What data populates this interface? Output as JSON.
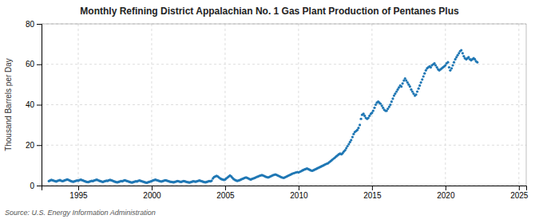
{
  "chart_data": {
    "type": "scatter",
    "title": "Monthly Refining District Appalachian No. 1 Gas Plant Production of Pentanes Plus",
    "y_label": "Thousand Barrels per Day",
    "source": "Source: U.S. Energy Information Administration",
    "xlim": [
      1992.5,
      2025.5
    ],
    "xticks": [
      1995,
      2000,
      2005,
      2010,
      2015,
      2020,
      2025
    ],
    "ylim": [
      0,
      80
    ],
    "yticks": [
      0,
      20,
      40,
      60,
      80
    ],
    "grid": true,
    "x": [
      1993.0,
      1993.08,
      1993.17,
      1993.25,
      1993.33,
      1993.42,
      1993.5,
      1993.58,
      1993.67,
      1993.75,
      1993.83,
      1993.92,
      1994.0,
      1994.08,
      1994.17,
      1994.25,
      1994.33,
      1994.42,
      1994.5,
      1994.58,
      1994.67,
      1994.75,
      1994.83,
      1994.92,
      1995.0,
      1995.08,
      1995.17,
      1995.25,
      1995.33,
      1995.42,
      1995.5,
      1995.58,
      1995.67,
      1995.75,
      1995.83,
      1995.92,
      1996.0,
      1996.08,
      1996.17,
      1996.25,
      1996.33,
      1996.42,
      1996.5,
      1996.58,
      1996.67,
      1996.75,
      1996.83,
      1996.92,
      1997.0,
      1997.08,
      1997.17,
      1997.25,
      1997.33,
      1997.42,
      1997.5,
      1997.58,
      1997.67,
      1997.75,
      1997.83,
      1997.92,
      1998.0,
      1998.08,
      1998.17,
      1998.25,
      1998.33,
      1998.42,
      1998.5,
      1998.58,
      1998.67,
      1998.75,
      1998.83,
      1998.92,
      1999.0,
      1999.08,
      1999.17,
      1999.25,
      1999.33,
      1999.42,
      1999.5,
      1999.58,
      1999.67,
      1999.75,
      1999.83,
      1999.92,
      2000.0,
      2000.08,
      2000.17,
      2000.25,
      2000.33,
      2000.42,
      2000.5,
      2000.58,
      2000.67,
      2000.75,
      2000.83,
      2000.92,
      2001.0,
      2001.08,
      2001.17,
      2001.25,
      2001.33,
      2001.42,
      2001.5,
      2001.58,
      2001.67,
      2001.75,
      2001.83,
      2001.92,
      2002.0,
      2002.08,
      2002.17,
      2002.25,
      2002.33,
      2002.42,
      2002.5,
      2002.58,
      2002.67,
      2002.75,
      2002.83,
      2002.92,
      2003.0,
      2003.08,
      2003.17,
      2003.25,
      2003.33,
      2003.42,
      2003.5,
      2003.58,
      2003.67,
      2003.75,
      2003.83,
      2003.92,
      2004.0,
      2004.08,
      2004.17,
      2004.25,
      2004.33,
      2004.42,
      2004.5,
      2004.58,
      2004.67,
      2004.75,
      2004.83,
      2004.92,
      2005.0,
      2005.08,
      2005.17,
      2005.25,
      2005.33,
      2005.42,
      2005.5,
      2005.58,
      2005.67,
      2005.75,
      2005.83,
      2005.92,
      2006.0,
      2006.08,
      2006.17,
      2006.25,
      2006.33,
      2006.42,
      2006.5,
      2006.58,
      2006.67,
      2006.75,
      2006.83,
      2006.92,
      2007.0,
      2007.08,
      2007.17,
      2007.25,
      2007.33,
      2007.42,
      2007.5,
      2007.58,
      2007.67,
      2007.75,
      2007.83,
      2007.92,
      2008.0,
      2008.08,
      2008.17,
      2008.25,
      2008.33,
      2008.42,
      2008.5,
      2008.58,
      2008.67,
      2008.75,
      2008.83,
      2008.92,
      2009.0,
      2009.08,
      2009.17,
      2009.25,
      2009.33,
      2009.42,
      2009.5,
      2009.58,
      2009.67,
      2009.75,
      2009.83,
      2009.92,
      2010.0,
      2010.08,
      2010.17,
      2010.25,
      2010.33,
      2010.42,
      2010.5,
      2010.58,
      2010.67,
      2010.75,
      2010.83,
      2010.92,
      2011.0,
      2011.08,
      2011.17,
      2011.25,
      2011.33,
      2011.42,
      2011.5,
      2011.58,
      2011.67,
      2011.75,
      2011.83,
      2011.92,
      2012.0,
      2012.08,
      2012.17,
      2012.25,
      2012.33,
      2012.42,
      2012.5,
      2012.58,
      2012.67,
      2012.75,
      2012.83,
      2012.92,
      2013.0,
      2013.08,
      2013.17,
      2013.25,
      2013.33,
      2013.42,
      2013.5,
      2013.58,
      2013.67,
      2013.75,
      2013.83,
      2013.92,
      2014.0,
      2014.08,
      2014.17,
      2014.25,
      2014.33,
      2014.42,
      2014.5,
      2014.58,
      2014.67,
      2014.75,
      2014.83,
      2014.92,
      2015.0,
      2015.08,
      2015.17,
      2015.25,
      2015.33,
      2015.42,
      2015.5,
      2015.58,
      2015.67,
      2015.75,
      2015.83,
      2015.92,
      2016.0,
      2016.08,
      2016.17,
      2016.25,
      2016.33,
      2016.42,
      2016.5,
      2016.58,
      2016.67,
      2016.75,
      2016.83,
      2016.92,
      2017.0,
      2017.08,
      2017.17,
      2017.25,
      2017.33,
      2017.42,
      2017.5,
      2017.58,
      2017.67,
      2017.75,
      2017.83,
      2017.92,
      2018.0,
      2018.08,
      2018.17,
      2018.25,
      2018.33,
      2018.42,
      2018.5,
      2018.58,
      2018.67,
      2018.75,
      2018.83,
      2018.92,
      2019.0,
      2019.08,
      2019.17,
      2019.25,
      2019.33,
      2019.42,
      2019.5,
      2019.58,
      2019.67,
      2019.75,
      2019.83,
      2019.92,
      2020.0,
      2020.08,
      2020.17,
      2020.25,
      2020.33,
      2020.42,
      2020.5,
      2020.58,
      2020.67,
      2020.75,
      2020.83,
      2020.92,
      2021.0,
      2021.08,
      2021.17,
      2021.25,
      2021.33,
      2021.42,
      2021.5,
      2021.58,
      2021.67,
      2021.75,
      2021.83,
      2021.92,
      2022.0,
      2022.08,
      2022.17
    ],
    "values": [
      2.2,
      2.5,
      2.8,
      2.6,
      2.4,
      2.2,
      2.0,
      2.3,
      2.5,
      2.7,
      2.4,
      2.2,
      2.3,
      2.6,
      2.8,
      3.0,
      2.8,
      2.5,
      2.2,
      2.0,
      1.9,
      2.1,
      2.3,
      2.5,
      2.4,
      2.7,
      2.9,
      2.7,
      2.5,
      2.2,
      2.0,
      1.8,
      1.7,
      1.9,
      2.1,
      2.3,
      2.2,
      2.5,
      2.7,
      2.9,
      2.7,
      2.4,
      2.2,
      2.0,
      1.8,
      2.0,
      2.2,
      2.4,
      2.3,
      2.6,
      2.8,
      2.6,
      2.4,
      2.1,
      1.9,
      1.7,
      1.6,
      1.8,
      2.0,
      2.2,
      2.1,
      2.4,
      2.6,
      2.4,
      2.2,
      2.0,
      1.8,
      1.6,
      1.5,
      1.7,
      1.9,
      2.1,
      2.0,
      2.3,
      2.5,
      2.3,
      2.1,
      1.9,
      1.7,
      1.5,
      1.4,
      1.6,
      1.8,
      2.0,
      2.2,
      2.5,
      2.7,
      2.9,
      2.7,
      2.5,
      2.3,
      2.1,
      2.0,
      2.2,
      2.4,
      2.6,
      2.5,
      2.3,
      2.1,
      1.9,
      1.8,
      1.7,
      1.6,
      1.8,
      2.0,
      2.2,
      2.1,
      1.9,
      1.8,
      2.0,
      2.2,
      2.1,
      1.9,
      1.7,
      1.6,
      1.5,
      1.7,
      1.9,
      2.1,
      2.0,
      1.9,
      2.1,
      2.3,
      2.5,
      2.3,
      2.1,
      1.9,
      1.7,
      1.6,
      1.8,
      2.0,
      2.2,
      2.1,
      2.4,
      3.5,
      4.2,
      4.5,
      4.8,
      4.5,
      4.0,
      3.5,
      3.2,
      3.0,
      2.8,
      3.0,
      3.5,
      4.0,
      4.5,
      5.0,
      4.5,
      3.8,
      3.2,
      2.8,
      2.5,
      2.3,
      2.5,
      2.7,
      3.0,
      3.3,
      3.5,
      3.8,
      4.0,
      3.8,
      3.5,
      3.2,
      3.0,
      3.3,
      3.5,
      3.7,
      4.0,
      4.3,
      4.5,
      4.8,
      5.0,
      5.2,
      5.0,
      4.7,
      4.4,
      4.2,
      4.0,
      4.2,
      4.5,
      4.8,
      5.1,
      5.3,
      5.5,
      5.3,
      5.0,
      4.7,
      4.4,
      4.1,
      3.9,
      3.8,
      4.1,
      4.4,
      4.7,
      5.0,
      5.3,
      5.6,
      5.9,
      6.1,
      6.3,
      6.5,
      6.7,
      6.5,
      6.8,
      7.1,
      7.4,
      7.7,
      8.0,
      8.2,
      8.4,
      8.1,
      7.8,
      7.5,
      7.3,
      7.5,
      7.8,
      8.1,
      8.4,
      8.7,
      9.0,
      9.3,
      9.6,
      9.9,
      10.2,
      10.5,
      10.8,
      11.0,
      11.5,
      12.0,
      12.5,
      13.0,
      13.5,
      14.0,
      14.5,
      15.0,
      15.5,
      15.8,
      15.5,
      16.0,
      16.8,
      17.5,
      18.5,
      19.5,
      20.5,
      21.5,
      22.5,
      24.0,
      25.5,
      26.5,
      27.0,
      27.5,
      28.5,
      30.0,
      33.0,
      35.0,
      35.5,
      34.5,
      33.5,
      33.0,
      33.5,
      34.5,
      35.5,
      36.0,
      37.0,
      38.5,
      40.0,
      41.0,
      41.5,
      41.0,
      40.5,
      39.5,
      38.5,
      37.5,
      37.0,
      37.0,
      38.0,
      39.0,
      40.0,
      41.5,
      43.0,
      44.5,
      45.5,
      46.5,
      47.5,
      48.5,
      49.5,
      49.0,
      50.5,
      52.0,
      53.0,
      52.0,
      51.0,
      50.0,
      49.0,
      47.5,
      46.5,
      45.5,
      44.5,
      45.0,
      46.5,
      48.0,
      49.5,
      51.0,
      52.5,
      54.0,
      55.5,
      57.0,
      58.0,
      58.5,
      59.0,
      58.5,
      59.5,
      60.0,
      60.5,
      59.5,
      58.5,
      57.5,
      57.0,
      57.5,
      58.0,
      58.5,
      59.0,
      59.5,
      60.5,
      61.0,
      58.5,
      57.0,
      58.0,
      59.5,
      61.0,
      62.5,
      63.5,
      64.5,
      65.5,
      66.5,
      67.0,
      65.5,
      64.0,
      63.0,
      62.5,
      63.0,
      63.5,
      62.5,
      62.0,
      62.5,
      63.0,
      62.5,
      61.5,
      61.0
    ]
  }
}
